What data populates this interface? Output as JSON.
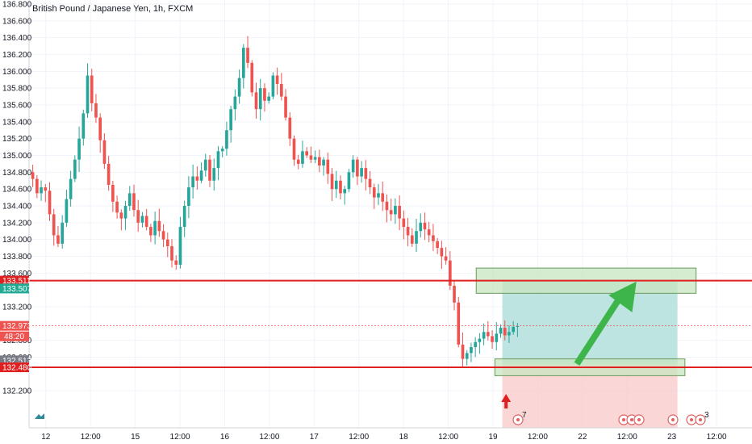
{
  "title": "British Pound / Japanese Yen, 1h, FXCM",
  "chart_data": {
    "type": "candlestick",
    "title": "British Pound / Japanese Yen, 1h, FXCM",
    "ylim": [
      132.0,
      136.8
    ],
    "y_ticks": [
      136.8,
      136.6,
      136.4,
      136.2,
      136.0,
      135.8,
      135.6,
      135.4,
      135.2,
      135.0,
      134.8,
      134.6,
      134.4,
      134.2,
      134.0,
      133.8,
      133.6,
      133.2,
      132.8,
      132.6,
      132.2
    ],
    "y_tick_labels": [
      "136.800",
      "136.600",
      "136.400",
      "136.200",
      "136.000",
      "135.800",
      "135.600",
      "135.400",
      "135.200",
      "135.000",
      "134.800",
      "134.600",
      "134.400",
      "134.200",
      "134.000",
      "133.800",
      "133.600",
      "133.200",
      "132.800",
      "132.600",
      "132.200"
    ],
    "x_tick_labels": [
      {
        "label": "12",
        "bar": 4
      },
      {
        "label": "12:00",
        "bar": 16
      },
      {
        "label": "15",
        "bar": 28
      },
      {
        "label": "12:00",
        "bar": 40
      },
      {
        "label": "16",
        "bar": 52
      },
      {
        "label": "12:00",
        "bar": 64
      },
      {
        "label": "17",
        "bar": 76
      },
      {
        "label": "12:00",
        "bar": 88
      },
      {
        "label": "18",
        "bar": 100
      },
      {
        "label": "12:00",
        "bar": 112
      },
      {
        "label": "19",
        "bar": 124
      },
      {
        "label": "12:00",
        "bar": 136
      },
      {
        "label": "22",
        "bar": 148
      },
      {
        "label": "12:00",
        "bar": 160
      },
      {
        "label": "23",
        "bar": 172
      },
      {
        "label": "12:00",
        "bar": 184
      }
    ],
    "bar_count_visible": 194,
    "closes": [
      134.72,
      134.55,
      134.62,
      134.58,
      134.3,
      134.05,
      133.95,
      134.2,
      134.48,
      134.72,
      134.95,
      135.2,
      135.5,
      135.95,
      135.62,
      135.45,
      135.18,
      134.9,
      134.65,
      134.45,
      134.32,
      134.25,
      134.4,
      134.55,
      134.35,
      134.2,
      134.28,
      134.15,
      134.05,
      134.22,
      134.1,
      134.0,
      133.92,
      133.75,
      133.7,
      134.15,
      134.4,
      134.62,
      134.75,
      134.7,
      134.82,
      134.95,
      134.7,
      134.85,
      135.05,
      135.08,
      135.3,
      135.55,
      135.7,
      135.92,
      136.28,
      136.1,
      135.75,
      135.55,
      135.8,
      135.65,
      135.7,
      135.95,
      135.85,
      135.7,
      135.45,
      135.2,
      134.95,
      134.9,
      135.05,
      135.0,
      134.95,
      134.98,
      134.88,
      134.95,
      134.78,
      134.6,
      134.7,
      134.55,
      134.6,
      134.8,
      134.95,
      134.75,
      134.85,
      134.72,
      134.62,
      134.5,
      134.55,
      134.45,
      134.35,
      134.3,
      134.4,
      134.25,
      134.15,
      134.05,
      133.95,
      134.1,
      134.2,
      134.12,
      134.05,
      133.98,
      133.9,
      133.8,
      133.75,
      133.45,
      133.25,
      132.75,
      132.58,
      132.65,
      132.72,
      132.78,
      132.82,
      132.9,
      132.85,
      132.78,
      132.88,
      132.95,
      132.86,
      132.9,
      132.96,
      132.97
    ],
    "change_point_bar": 100,
    "last_price": "132.973",
    "countdown": "48:20",
    "levels": [
      {
        "price": 133.511,
        "label": "133.511",
        "color": "#e02020"
      },
      {
        "price": 132.48,
        "label": "132.480",
        "color": "#e02020"
      }
    ],
    "position_tags": [
      {
        "price": 133.507,
        "label": "133.507",
        "color": "#22ab94"
      },
      {
        "price": 132.513,
        "label": "132.513",
        "color": "#787b86"
      }
    ],
    "zones": [
      {
        "name": "supply-zone",
        "top": 133.66,
        "bottom": 133.36,
        "bar_start": 120,
        "bar_end": 179
      },
      {
        "name": "demand-zone",
        "top": 132.58,
        "bottom": 132.38,
        "bar_start": 125,
        "bar_end": 176
      }
    ],
    "long_position": {
      "entry": 132.513,
      "target": 133.507,
      "stop": 132.0,
      "bar_start": 127,
      "bar_end": 174
    },
    "arrow": {
      "from_bar": 147,
      "from_price": 132.52,
      "to_bar": 163,
      "to_price": 133.5
    },
    "marker_bar": 128,
    "event_badge": "7",
    "event_badge_2": "3",
    "colors": {
      "up": "#26a69a",
      "down": "#ef5350",
      "level": "#e02020",
      "zone": "#c8e6c0",
      "target": "#b2dfdb",
      "stop": "#f8c8c8",
      "arrow": "#3db54a"
    }
  }
}
